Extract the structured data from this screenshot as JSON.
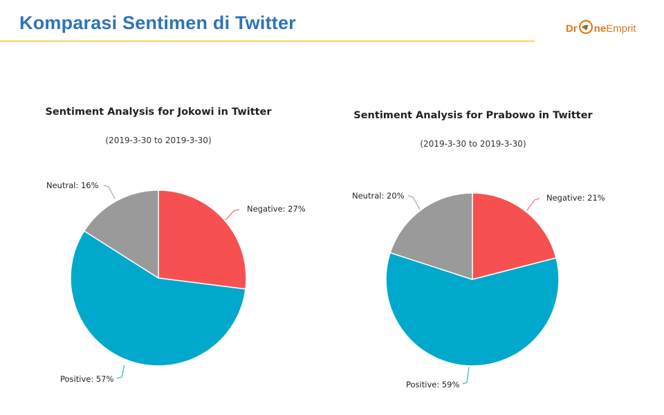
{
  "slide": {
    "title": "Komparasi Sentimen di Twitter",
    "logo": {
      "text_part1": "Dr",
      "text_part2": "ne",
      "text_part3": "Emprit",
      "icon": "drone-emprit-logo-icon"
    }
  },
  "colors": {
    "negative": "#f65150",
    "positive": "#00a9cc",
    "neutral": "#9a9a9a",
    "title": "#2e74b5",
    "accent_rule": "#f6e08a",
    "logo": "#e07a1c"
  },
  "chart_data": [
    {
      "type": "pie",
      "title": "Sentiment Analysis for Jokowi in Twitter",
      "subtitle": "(2019-3-30 to 2019-3-30)",
      "slices": [
        {
          "name": "Negative",
          "value": 27,
          "label": "Negative: 27%",
          "color": "#f65150"
        },
        {
          "name": "Positive",
          "value": 57,
          "label": "Positive: 57%",
          "color": "#00a9cc"
        },
        {
          "name": "Neutral",
          "value": 16,
          "label": "Neutral: 16%",
          "color": "#9a9a9a"
        }
      ]
    },
    {
      "type": "pie",
      "title": "Sentiment Analysis for Prabowo in Twitter",
      "subtitle": "(2019-3-30 to 2019-3-30)",
      "slices": [
        {
          "name": "Negative",
          "value": 21,
          "label": "Negative: 21%",
          "color": "#f65150"
        },
        {
          "name": "Positive",
          "value": 59,
          "label": "Positive: 59%",
          "color": "#00a9cc"
        },
        {
          "name": "Neutral",
          "value": 20,
          "label": "Neutral: 20%",
          "color": "#9a9a9a"
        }
      ]
    }
  ]
}
